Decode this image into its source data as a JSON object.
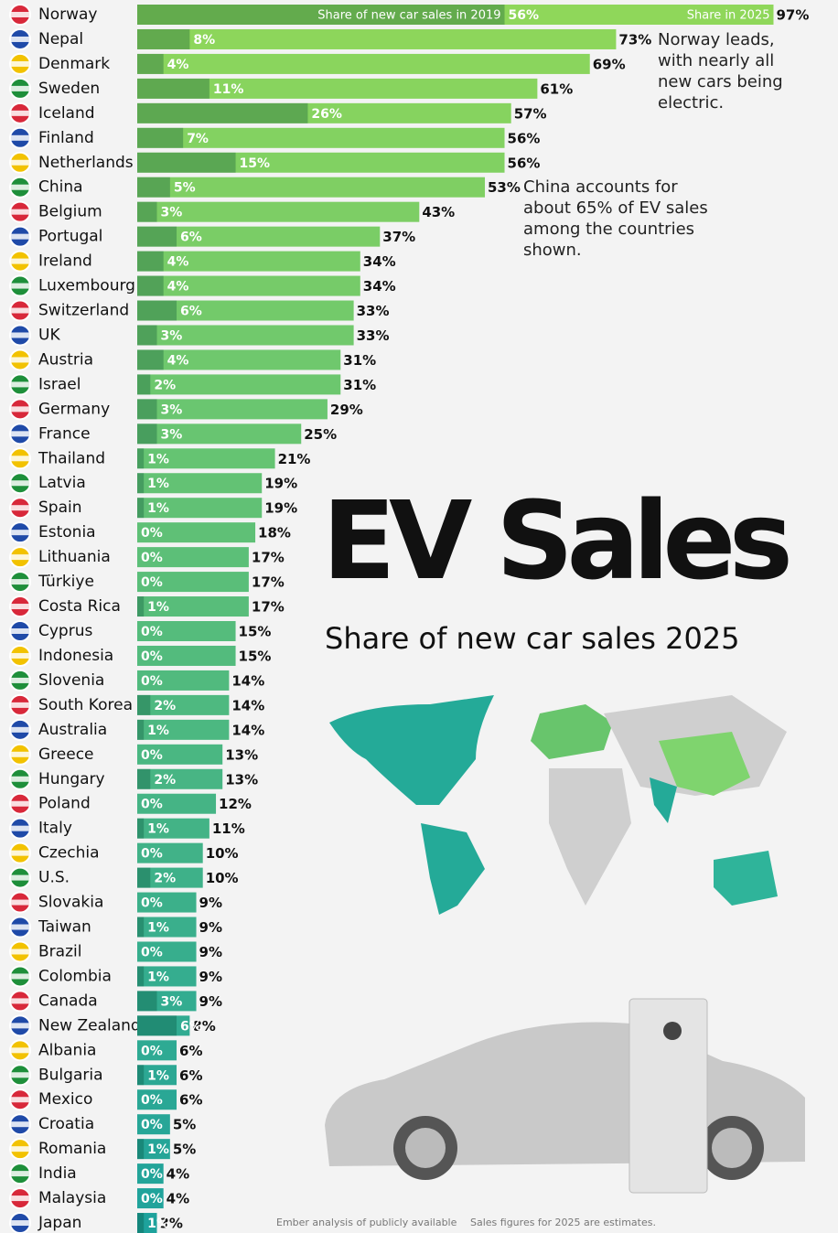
{
  "chart_data": {
    "type": "bar",
    "orientation": "horizontal",
    "title": "EV Sales",
    "subtitle": "Share of new car sales 2025",
    "annotations": [
      "Norway leads, with nearly all new cars being electric.",
      "China accounts for about 65% of EV sales among the countries shown."
    ],
    "source": [
      "Ember analysis of publicly available",
      "Sales figures for 2025 are estimates."
    ],
    "categories": [
      "Norway",
      "Nepal",
      "Denmark",
      "Sweden",
      "Iceland",
      "Finland",
      "Netherlands",
      "China",
      "Belgium",
      "Portugal",
      "Ireland",
      "Luxembourg",
      "Switzerland",
      "UK",
      "Austria",
      "Israel",
      "Germany",
      "France",
      "Thailand",
      "Latvia",
      "Spain",
      "Estonia",
      "Lithuania",
      "Türkiye",
      "Costa Rica",
      "Cyprus",
      "Indonesia",
      "Slovenia",
      "South Korea",
      "Australia",
      "Greece",
      "Hungary",
      "Poland",
      "Italy",
      "Czechia",
      "U.S.",
      "Slovakia",
      "Taiwan",
      "Brazil",
      "Colombia",
      "Canada",
      "New Zealand",
      "Albania",
      "Bulgaria",
      "Mexico",
      "Croatia",
      "Romania",
      "India",
      "Malaysia",
      "Japan"
    ],
    "gradient": [
      "#8fd75a",
      "#1ea29c"
    ],
    "series": [
      {
        "name": "Share in 2025",
        "color": "#8fd75a",
        "values": [
          97,
          73,
          69,
          61,
          57,
          56,
          56,
          53,
          43,
          37,
          34,
          34,
          33,
          33,
          31,
          31,
          29,
          25,
          21,
          19,
          19,
          18,
          17,
          17,
          17,
          15,
          15,
          14,
          14,
          14,
          13,
          13,
          12,
          11,
          10,
          10,
          9,
          9,
          9,
          9,
          9,
          8,
          6,
          6,
          6,
          5,
          5,
          4,
          4,
          3
        ],
        "value_labels": [
          "97%",
          "73%",
          "69%",
          "61%",
          "57%",
          "56%",
          "56%",
          "53%",
          "43%",
          "37%",
          "34%",
          "34%",
          "33%",
          "33%",
          "31%",
          "31%",
          "29%",
          "25%",
          "21%",
          "19%",
          "19%",
          "18%",
          "17%",
          "17%",
          "17%",
          "15%",
          "15%",
          "14%",
          "14%",
          "14%",
          "13%",
          "13%",
          "12%",
          "11%",
          "10%",
          "10%",
          "9%",
          "9%",
          "9%",
          "9%",
          "9%",
          "8%",
          "6%",
          "6%",
          "6%",
          "5%",
          "5%",
          "4%",
          "4%",
          "3%"
        ]
      },
      {
        "name": "Share of new car sales in 2019",
        "color": "rgba(0,70,50,0.3)",
        "values": [
          56,
          8,
          4,
          11,
          26,
          7,
          15,
          5,
          3,
          6,
          4,
          4,
          6,
          3,
          4,
          2,
          3,
          3,
          1,
          1,
          1,
          0,
          0,
          0,
          1,
          0,
          0,
          0,
          2,
          1,
          0,
          2,
          0,
          1,
          0,
          2,
          0,
          1,
          0,
          1,
          3,
          6,
          0,
          1,
          0,
          0,
          1,
          0,
          0,
          1
        ],
        "value_labels": [
          "56%",
          "8%",
          "4%",
          "11%",
          "26%",
          "7%",
          "15%",
          "5%",
          "3%",
          "6%",
          "4%",
          "4%",
          "6%",
          "3%",
          "4%",
          "2%",
          "3%",
          "3%",
          "1%",
          "1%",
          "1%",
          "0%",
          "0%",
          "0%",
          "1%",
          "0%",
          "0%",
          "0%",
          "2%",
          "1%",
          "0%",
          "2%",
          "0%",
          "1%",
          "0%",
          "2%",
          "0%",
          "1%",
          "0%",
          "1%",
          "3%",
          "6%",
          "0%",
          "1%",
          "0%",
          "0%",
          "1%",
          "0%",
          "0%",
          "1%"
        ]
      }
    ],
    "xlim": [
      0,
      100
    ]
  }
}
